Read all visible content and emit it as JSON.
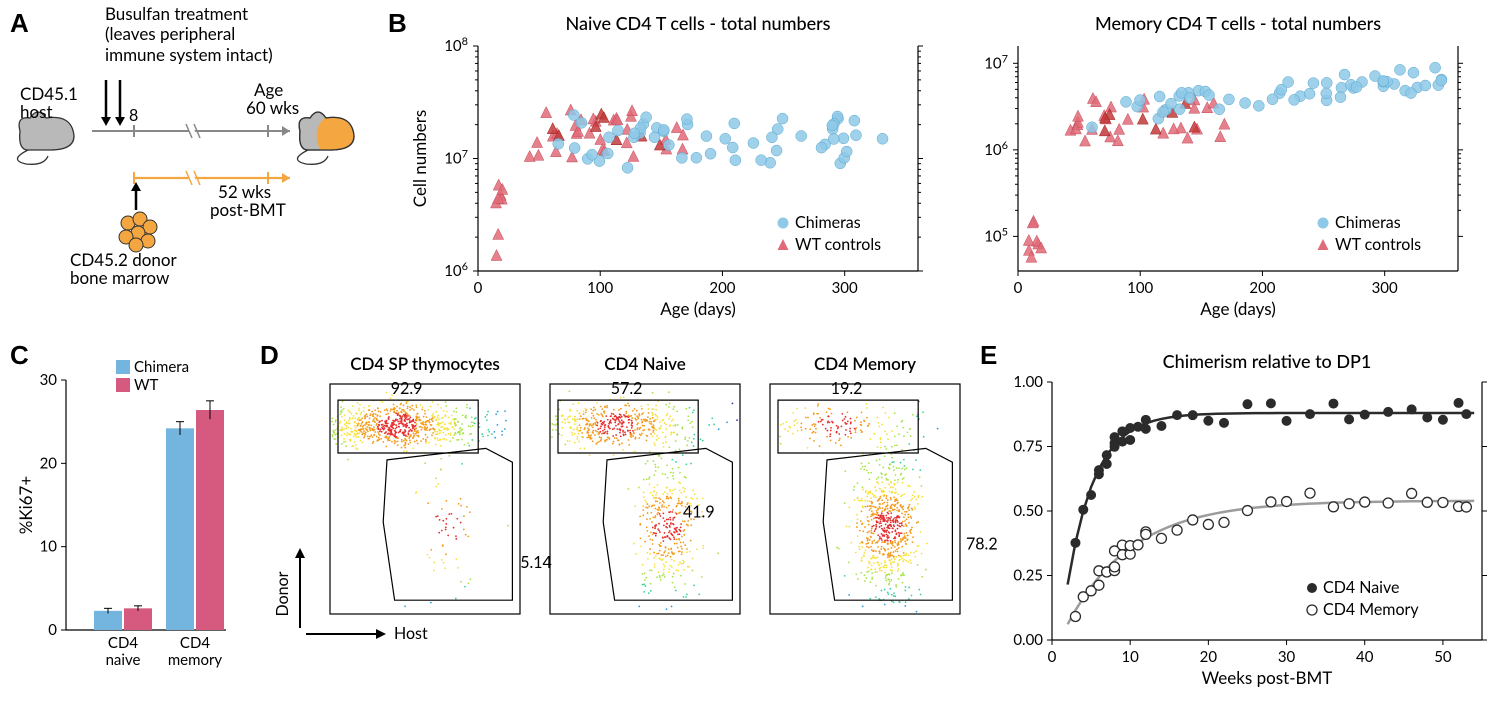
{
  "panelA": {
    "label": "A",
    "busulfan_text_l1": "Busulfan treatment",
    "busulfan_text_l2": "(leaves peripheral",
    "busulfan_text_l3": "immune system intact)",
    "host_label_l1": "CD45.1",
    "host_label_l2": "host",
    "donor_label_l1": "CD45.2 donor",
    "donor_label_l2": "bone marrow",
    "age_label_l1": "Age",
    "age_label_l2": "60 wks",
    "post_bmt_l1": "52 wks",
    "post_bmt_l2": "post-BMT",
    "week8": "8",
    "host_color": "#b9b9b9",
    "donor_color": "#f4a640",
    "chimera_fill1": "#b9b9b9",
    "chimera_fill2": "#f4a640"
  },
  "panelB": {
    "label": "B",
    "chart1_title": "Naive CD4 T cells - total numbers",
    "chart2_title": "Memory CD4 T cells - total numbers",
    "ylabel": "Cell numbers",
    "xlabel": "Age (days)",
    "legend1": "Chimeras",
    "legend2": "WT controls",
    "chimera_color": "#8ec9e8",
    "wt_color": "#e06b78",
    "wt_color_dark": "#c33a3a",
    "chart1": {
      "type": "scatter",
      "xlim": [
        0,
        360
      ],
      "xtick_step": 100,
      "ylim_log": [
        6,
        8
      ],
      "yticks": [
        6,
        7,
        8
      ]
    },
    "chart2": {
      "type": "scatter",
      "xlim": [
        0,
        360
      ],
      "xtick_step": 100,
      "ylim_log": [
        4.6,
        7.2
      ],
      "yticks": [
        5,
        6,
        7
      ]
    }
  },
  "panelC": {
    "label": "C",
    "type": "bar",
    "ylabel": "%Ki67+",
    "legend1": "Chimera",
    "legend2": "WT",
    "chimera_color": "#73b5de",
    "wt_color": "#d65a7f",
    "categories": [
      "CD4\nnaive",
      "CD4\nmemory"
    ],
    "values_chimera": [
      2.3,
      24.2
    ],
    "values_wt": [
      2.6,
      26.4
    ],
    "err_chimera": [
      0.3,
      0.8
    ],
    "err_wt": [
      0.3,
      1.1
    ],
    "ylim": [
      0,
      30
    ],
    "ytick_step": 10,
    "bar_width": 0.35
  },
  "panelD": {
    "label": "D",
    "subplot_titles": [
      "CD4 SP thymocytes",
      "CD4 Naive",
      "CD4 Memory"
    ],
    "yaxis": "Donor",
    "xaxis": "Host",
    "gates": [
      {
        "donor": "92.9",
        "host": "5.14"
      },
      {
        "donor": "57.2",
        "host": "41.9"
      },
      {
        "donor": "19.2",
        "host": "78.2"
      }
    ],
    "heat_colors": [
      "#2b3ab2",
      "#2f9ee0",
      "#3ad29a",
      "#a9e34b",
      "#f7e13b",
      "#f49b1b",
      "#e62e2e"
    ]
  },
  "panelE": {
    "label": "E",
    "title": "Chimerism relative to DP1",
    "type": "scatter+line",
    "xlabel": "Weeks post-BMT",
    "ylim": [
      0,
      1.0
    ],
    "ytick_step": 0.25,
    "xlim": [
      0,
      55
    ],
    "xtick_step": 10,
    "legend1": "CD4 Naive",
    "legend2": "CD4 Memory",
    "naive_color": "#2b2b2b",
    "memory_color": "#9c9c9c",
    "memory_fill": "#ffffff",
    "line_width": 2.5,
    "marker_size": 5
  }
}
